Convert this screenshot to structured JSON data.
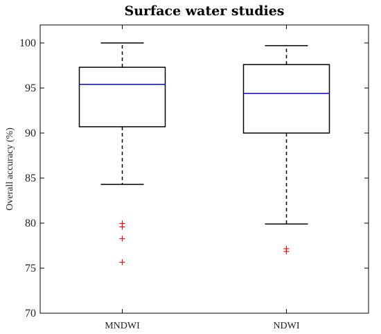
{
  "chart_data": {
    "type": "box",
    "title": "Surface water studies",
    "xlabel": "",
    "ylabel": "Overall accuracy (%)",
    "ylim": [
      70,
      102
    ],
    "yticks": [
      70,
      75,
      80,
      85,
      90,
      95,
      100
    ],
    "categories": [
      "MNDWI",
      "NDWI"
    ],
    "boxes": [
      {
        "category": "MNDWI",
        "whisker_low": 84.3,
        "q1": 90.7,
        "median": 95.4,
        "q3": 97.3,
        "whisker_high": 100.0,
        "outliers": [
          80.0,
          79.6,
          78.3,
          75.7
        ]
      },
      {
        "category": "NDWI",
        "whisker_low": 79.9,
        "q1": 90.0,
        "median": 94.4,
        "q3": 97.6,
        "whisker_high": 99.7,
        "outliers": [
          77.2,
          76.9
        ]
      }
    ],
    "colors": {
      "box": "#000000",
      "median": "#0000ff",
      "outlier": "#ff0000"
    },
    "grid": false
  }
}
